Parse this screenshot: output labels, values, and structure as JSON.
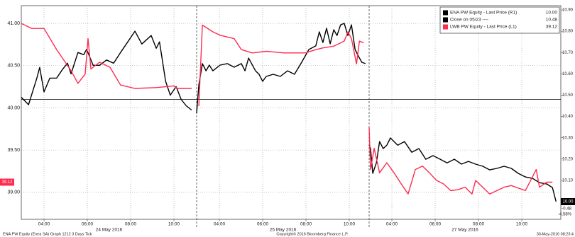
{
  "chart_data": {
    "type": "line",
    "x_groups": [
      "24 May 2016",
      "25 May 2016",
      "27 May 2016"
    ],
    "xticks": [
      {
        "value": "24 May 2016 04:00",
        "label": "04:00"
      },
      {
        "value": "24 May 2016 06:00",
        "label": "06:00"
      },
      {
        "value": "24 May 2016 08:00",
        "label": "08:00"
      },
      {
        "value": "24 May 2016 10:00",
        "label": "10:00"
      },
      {
        "value": "25 May 2016 04:00",
        "label": "04:00"
      },
      {
        "value": "25 May 2016 06:00",
        "label": "06:00"
      },
      {
        "value": "25 May 2016 08:00",
        "label": "08:00"
      },
      {
        "value": "25 May 2016 10:00",
        "label": "10:00"
      },
      {
        "value": "27 May 2016 04:00",
        "label": "04:00"
      },
      {
        "value": "27 May 2016 06:00",
        "label": "06:00"
      },
      {
        "value": "27 May 2016 08:00",
        "label": "08:00"
      },
      {
        "value": "27 May 2016 10:00",
        "label": "10:00"
      }
    ],
    "ylim": [
      38.68,
      41.21
    ],
    "yticks": [
      {
        "value": 39,
        "label": "39.00"
      },
      {
        "value": 39.5,
        "label": "39.50"
      },
      {
        "value": 40,
        "label": "40.00"
      },
      {
        "value": 40.5,
        "label": "40.50"
      },
      {
        "value": 41,
        "label": "41.00"
      }
    ],
    "y2lim": [
      9.917,
      10.92
    ],
    "y2ticks": [
      {
        "value": 10.1,
        "label": "10.10"
      },
      {
        "value": 10.2,
        "label": "10.20"
      },
      {
        "value": 10.3,
        "label": "10.30"
      },
      {
        "value": 10.4,
        "label": "10.40"
      },
      {
        "value": 10.5,
        "label": "10.50"
      },
      {
        "value": 10.6,
        "label": "10.60"
      },
      {
        "value": 10.7,
        "label": "10.70"
      },
      {
        "value": 10.8,
        "label": "10.80"
      },
      {
        "value": 10.9,
        "label": "10.90"
      }
    ],
    "grid": true,
    "legend": "upper right",
    "series": [
      {
        "name": "ENA PW Equity - Last Price (R1)",
        "color": "#000000",
        "axis": "y2",
        "last_label": "10.00",
        "x": [
          "24 May 2016 02:57",
          "24 May 2016 03:17",
          "24 May 2016 03:40",
          "24 May 2016 03:48",
          "24 May 2016 04:00",
          "24 May 2016 04:16",
          "24 May 2016 04:35",
          "24 May 2016 04:51",
          "24 May 2016 05:05",
          "24 May 2016 05:15",
          "24 May 2016 05:34",
          "24 May 2016 05:50",
          "24 May 2016 05:58",
          "24 May 2016 06:16",
          "24 May 2016 06:34",
          "24 May 2016 06:53",
          "24 May 2016 07:13",
          "24 May 2016 07:32",
          "24 May 2016 07:52",
          "24 May 2016 08:12",
          "24 May 2016 08:31",
          "24 May 2016 08:57",
          "24 May 2016 09:11",
          "24 May 2016 09:20",
          "24 May 2016 09:37",
          "24 May 2016 09:50",
          "24 May 2016 10:06",
          "24 May 2016 10:20",
          "24 May 2016 10:34",
          "24 May 2016 10:49",
          null,
          "25 May 2016 02:57",
          "25 May 2016 03:03",
          "25 May 2016 03:13",
          "25 May 2016 03:23",
          "25 May 2016 03:32",
          "25 May 2016 03:42",
          "25 May 2016 04:02",
          "25 May 2016 04:22",
          "25 May 2016 04:41",
          "25 May 2016 05:01",
          "25 May 2016 05:11",
          "25 May 2016 05:21",
          "25 May 2016 05:40",
          "25 May 2016 05:50",
          "25 May 2016 06:00",
          "25 May 2016 06:10",
          "25 May 2016 06:29",
          "25 May 2016 06:49",
          "25 May 2016 07:09",
          "25 May 2016 07:28",
          "25 May 2016 07:48",
          "25 May 2016 08:08",
          "25 May 2016 08:27",
          "25 May 2016 08:37",
          "25 May 2016 08:47",
          "25 May 2016 08:57",
          "25 May 2016 09:07",
          "25 May 2016 09:17",
          "25 May 2016 09:26",
          "25 May 2016 09:36",
          "25 May 2016 09:46",
          "25 May 2016 09:56",
          "25 May 2016 10:06",
          "25 May 2016 10:16",
          "25 May 2016 10:26",
          "25 May 2016 10:35",
          "25 May 2016 10:45",
          null,
          "27 May 2016 02:57",
          "27 May 2016 03:01",
          "27 May 2016 03:07",
          "27 May 2016 03:17",
          "27 May 2016 03:26",
          "27 May 2016 03:36",
          "27 May 2016 03:46",
          "27 May 2016 03:56",
          "27 May 2016 04:16",
          "27 May 2016 04:35",
          "27 May 2016 04:55",
          "27 May 2016 05:15",
          "27 May 2016 05:34",
          "27 May 2016 05:54",
          "27 May 2016 06:14",
          "27 May 2016 06:33",
          "27 May 2016 06:53",
          "27 May 2016 07:13",
          "27 May 2016 07:32",
          "27 May 2016 07:52",
          "27 May 2016 08:12",
          "27 May 2016 08:31",
          "27 May 2016 08:51",
          "27 May 2016 09:11",
          "27 May 2016 09:31",
          "27 May 2016 09:50",
          "27 May 2016 10:10",
          "27 May 2016 10:30",
          "27 May 2016 10:49",
          "27 May 2016 11:09",
          "27 May 2016 11:25",
          "27 May 2016 11:35"
        ],
        "values": [
          10.49,
          10.455,
          10.58,
          10.63,
          10.515,
          10.58,
          10.58,
          10.62,
          10.65,
          10.6,
          10.7,
          10.69,
          10.715,
          10.64,
          10.64,
          10.665,
          10.65,
          10.7,
          10.75,
          10.8,
          10.74,
          10.78,
          10.72,
          10.75,
          10.565,
          10.5,
          10.54,
          10.48,
          10.45,
          10.43,
          null,
          10.415,
          10.548,
          10.648,
          10.614,
          10.641,
          10.614,
          10.641,
          10.648,
          10.631,
          10.648,
          10.614,
          10.674,
          10.614,
          10.598,
          10.565,
          10.588,
          10.598,
          10.588,
          10.614,
          10.598,
          10.654,
          10.714,
          10.731,
          10.797,
          10.747,
          10.814,
          10.741,
          10.807,
          10.78,
          10.83,
          10.837,
          10.78,
          10.83,
          10.714,
          10.681,
          10.654,
          10.648,
          null,
          10.265,
          10.249,
          10.133,
          10.182,
          10.282,
          10.249,
          10.265,
          10.299,
          10.265,
          10.282,
          10.232,
          10.249,
          10.199,
          10.216,
          10.199,
          10.182,
          10.199,
          10.176,
          10.189,
          10.176,
          10.166,
          10.149,
          10.156,
          10.166,
          10.156,
          10.133,
          10.116,
          10.109,
          10.089,
          10.083,
          10.066,
          10.0
        ]
      },
      {
        "name": "LWB PW Equity - Last Price (L1)",
        "color": "#ff2a4f",
        "axis": "y",
        "last_label": "39.12",
        "x": [
          "24 May 2016 02:57",
          "24 May 2016 03:26",
          "24 May 2016 04:00",
          "24 May 2016 04:35",
          "24 May 2016 05:15",
          "24 May 2016 05:34",
          "24 May 2016 05:54",
          "24 May 2016 06:02",
          "24 May 2016 06:10",
          "24 May 2016 06:34",
          "24 May 2016 07:03",
          "24 May 2016 07:32",
          "24 May 2016 08:12",
          "24 May 2016 09:11",
          "24 May 2016 10:00",
          "24 May 2016 10:10",
          "24 May 2016 10:49",
          null,
          "25 May 2016 03:03",
          "25 May 2016 03:13",
          "25 May 2016 03:42",
          "25 May 2016 04:02",
          "25 May 2016 04:41",
          "25 May 2016 05:01",
          "25 May 2016 05:31",
          "25 May 2016 06:10",
          "25 May 2016 06:59",
          "25 May 2016 07:58",
          "25 May 2016 08:28",
          "25 May 2016 08:47",
          "25 May 2016 09:17",
          "25 May 2016 09:46",
          "25 May 2016 09:56",
          "25 May 2016 10:06",
          "25 May 2016 10:20",
          "25 May 2016 10:28",
          "25 May 2016 10:40",
          null,
          "27 May 2016 02:57",
          "27 May 2016 03:01",
          "27 May 2016 03:11",
          "27 May 2016 03:26",
          "27 May 2016 03:46",
          "27 May 2016 04:06",
          "27 May 2016 04:26",
          "27 May 2016 04:45",
          "27 May 2016 05:05",
          "27 May 2016 05:25",
          "27 May 2016 05:44",
          "27 May 2016 06:04",
          "27 May 2016 06:23",
          "27 May 2016 06:43",
          "27 May 2016 07:03",
          "27 May 2016 07:23",
          "27 May 2016 07:42",
          "27 May 2016 07:52",
          "27 May 2016 08:12",
          "27 May 2016 08:31",
          "27 May 2016 08:51",
          "27 May 2016 09:11",
          "27 May 2016 09:31",
          "27 May 2016 10:10",
          "27 May 2016 10:40",
          "27 May 2016 10:49",
          "27 May 2016 11:09",
          "27 May 2016 11:25"
        ],
        "values": [
          41.0,
          40.94,
          40.94,
          40.69,
          40.44,
          40.29,
          40.4,
          40.82,
          40.46,
          40.54,
          40.48,
          40.27,
          40.23,
          40.24,
          40.26,
          40.23,
          40.23,
          null,
          40.02,
          40.98,
          40.9,
          40.86,
          40.82,
          40.69,
          40.65,
          40.67,
          40.65,
          40.65,
          40.69,
          40.71,
          40.73,
          40.79,
          40.9,
          40.82,
          40.52,
          40.79,
          40.77,
          null,
          39.77,
          39.27,
          39.52,
          39.23,
          39.35,
          39.23,
          39.1,
          38.98,
          39.27,
          39.31,
          39.23,
          39.14,
          39.1,
          39.02,
          39.03,
          39.06,
          38.98,
          39.14,
          39.06,
          38.98,
          39.02,
          39.06,
          39.08,
          39.02,
          39.27,
          39.06,
          39.12,
          39.12
        ]
      }
    ],
    "reference_lines": [
      {
        "name": "Close on 05/23 ----",
        "value": 10.48,
        "label": "10.48",
        "axis": "y2",
        "color": "#000000"
      }
    ],
    "annotations": [
      "-0.48",
      "-4.58%"
    ],
    "footer": {
      "left": "ENA PW Equity (Enea SA) Graph 1212 3 Days  Tick",
      "center": "Copyright© 2016 Bloomberg Finance L.P.",
      "right": "30-May-2016 08:23:4"
    }
  }
}
